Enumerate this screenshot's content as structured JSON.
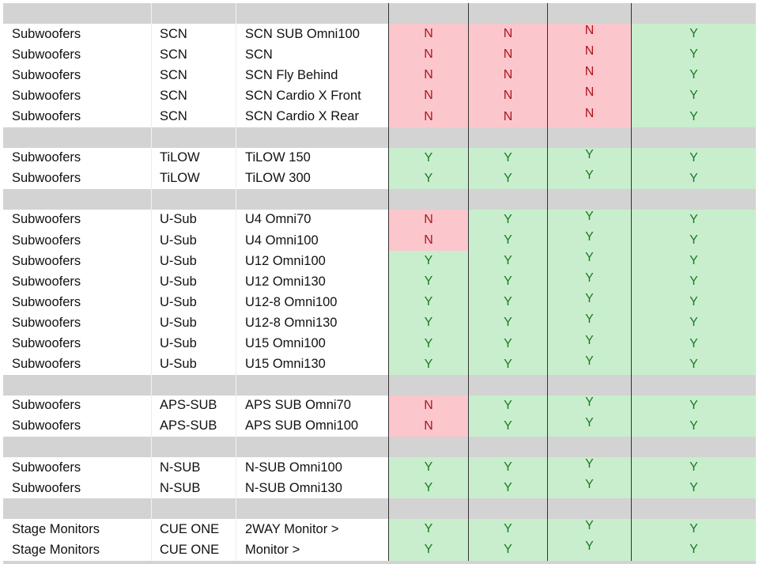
{
  "table": {
    "header": [
      "",
      "",
      "",
      "",
      "",
      "",
      ""
    ],
    "rows": [
      {
        "cells": [
          "Subwoofers",
          "SCN",
          "SCN SUB Omni100",
          "N",
          "N",
          "N",
          "Y"
        ]
      },
      {
        "cells": [
          "Subwoofers",
          "SCN",
          "SCN",
          "N",
          "N",
          "N",
          "Y"
        ]
      },
      {
        "cells": [
          "Subwoofers",
          "SCN",
          "SCN Fly Behind",
          "N",
          "N",
          "N",
          "Y"
        ]
      },
      {
        "cells": [
          "Subwoofers",
          "SCN",
          "SCN Cardio X Front",
          "N",
          "N",
          "N",
          "Y"
        ]
      },
      {
        "cells": [
          "Subwoofers",
          "SCN",
          "SCN Cardio X Rear",
          "N",
          "N",
          "N",
          "Y"
        ]
      },
      {
        "sep": true
      },
      {
        "cells": [
          "Subwoofers",
          "TiLOW",
          "TiLOW 150",
          "Y",
          "Y",
          "Y",
          "Y"
        ]
      },
      {
        "cells": [
          "Subwoofers",
          "TiLOW",
          "TiLOW 300",
          "Y",
          "Y",
          "Y",
          "Y"
        ]
      },
      {
        "sep": true
      },
      {
        "cells": [
          "Subwoofers",
          "U-Sub",
          "U4 Omni70",
          "N",
          "Y",
          "Y",
          "Y"
        ]
      },
      {
        "cells": [
          "Subwoofers",
          "U-Sub",
          "U4 Omni100",
          "N",
          "Y",
          "Y",
          "Y"
        ]
      },
      {
        "cells": [
          "Subwoofers",
          "U-Sub",
          "U12 Omni100",
          "Y",
          "Y",
          "Y",
          "Y"
        ]
      },
      {
        "cells": [
          "Subwoofers",
          "U-Sub",
          "U12 Omni130",
          "Y",
          "Y",
          "Y",
          "Y"
        ]
      },
      {
        "cells": [
          "Subwoofers",
          "U-Sub",
          "U12-8 Omni100",
          "Y",
          "Y",
          "Y",
          "Y"
        ]
      },
      {
        "cells": [
          "Subwoofers",
          "U-Sub",
          "U12-8 Omni130",
          "Y",
          "Y",
          "Y",
          "Y"
        ]
      },
      {
        "cells": [
          "Subwoofers",
          "U-Sub",
          "U15 Omni100",
          "Y",
          "Y",
          "Y",
          "Y"
        ]
      },
      {
        "cells": [
          "Subwoofers",
          "U-Sub",
          "U15 Omni130",
          "Y",
          "Y",
          "Y",
          "Y"
        ]
      },
      {
        "sep": true
      },
      {
        "cells": [
          "Subwoofers",
          "APS-SUB",
          "APS SUB Omni70",
          "N",
          "Y",
          "Y",
          "Y"
        ]
      },
      {
        "cells": [
          "Subwoofers",
          "APS-SUB",
          "APS SUB Omni100",
          "N",
          "Y",
          "Y",
          "Y"
        ]
      },
      {
        "sep": true
      },
      {
        "cells": [
          "Subwoofers",
          "N-SUB",
          "N-SUB Omni100",
          "Y",
          "Y",
          "Y",
          "Y"
        ]
      },
      {
        "cells": [
          "Subwoofers",
          "N-SUB",
          "N-SUB Omni130",
          "Y",
          "Y",
          "Y",
          "Y"
        ]
      },
      {
        "sep": true
      },
      {
        "cells": [
          "Stage Monitors",
          "CUE ONE",
          "2WAY Monitor >",
          "Y",
          "Y",
          "Y",
          "Y"
        ]
      },
      {
        "cells": [
          "Stage Monitors",
          "CUE ONE",
          "Monitor >",
          "Y",
          "Y",
          "Y",
          "Y"
        ]
      }
    ]
  },
  "colors": {
    "yes_fill": "#c9eecd",
    "yes_text": "#1a7a27",
    "no_fill": "#fbc6cc",
    "no_text": "#b0141e",
    "separator": "#d3d3d3"
  }
}
